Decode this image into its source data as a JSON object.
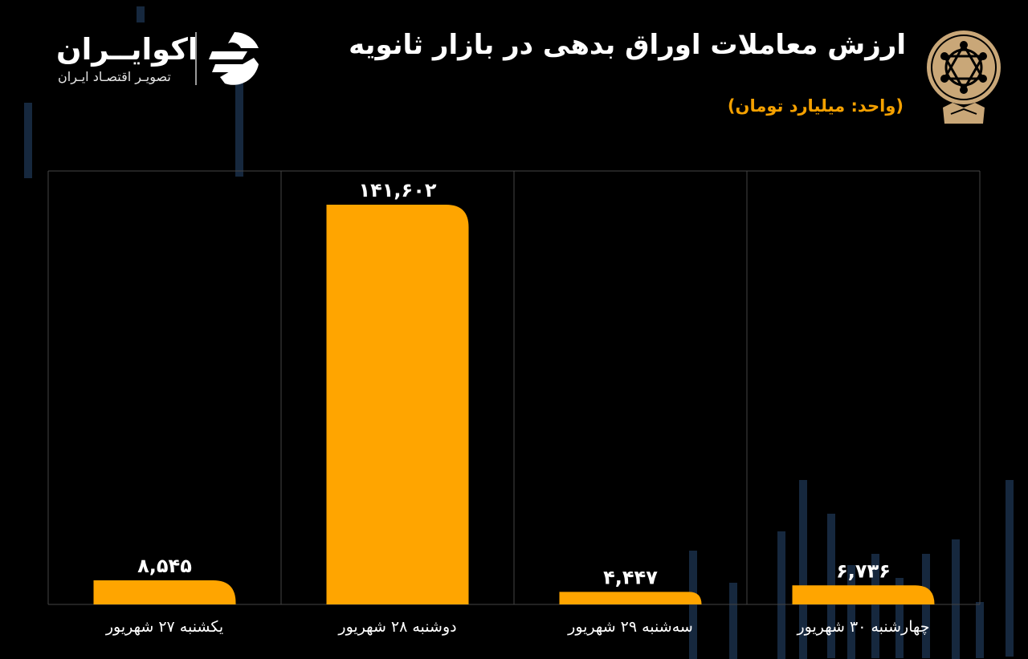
{
  "header": {
    "title": "ارزش معاملات اوراق بدهی در بازار ثانویه",
    "unit_note": "(واحد: میلیارد تومان)"
  },
  "brand": {
    "name": "اکوایــران",
    "tagline": "تصویـر اقتصـاد ایـران"
  },
  "colors": {
    "bar": "#ffa500",
    "unit_text": "#f5a100",
    "gridline": "#444444"
  },
  "chart_data": {
    "type": "bar",
    "direction": "rtl",
    "title": "ارزش معاملات اوراق بدهی در بازار ثانویه",
    "unit": "(واحد: میلیارد تومان)",
    "categories": [
      "چهارشنبه ۳۰ شهریور",
      "سه‌شنبه ۲۹ شهریور",
      "دوشنبه ۲۸ شهریور",
      "یکشنبه ۲۷ شهریور"
    ],
    "values": [
      6736,
      4447,
      141602,
      8545
    ],
    "value_labels": [
      "۶,۷۳۶",
      "۴,۴۴۷",
      "۱۴۱,۶۰۲",
      "۸,۵۴۵"
    ],
    "ylim": [
      0,
      150000
    ],
    "grid": true,
    "legend": "none"
  }
}
